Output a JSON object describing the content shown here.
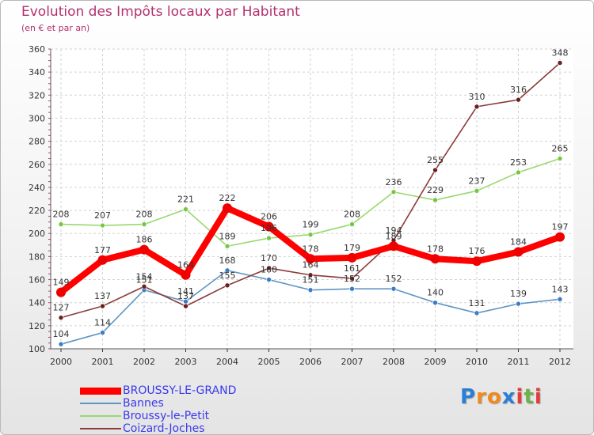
{
  "title": "Evolution des Impôts locaux par Habitant",
  "subtitle": "(en € et par an)",
  "logo": {
    "letters": [
      "P",
      "r",
      "o",
      "x",
      "i",
      "t",
      "i"
    ],
    "colors": [
      "#2a7fd4",
      "#f08a1c",
      "#f08a1c",
      "#2a7fd4",
      "#e53a3a",
      "#6bb34a",
      "#e53a3a"
    ]
  },
  "chart_data": {
    "type": "line",
    "categories": [
      "2000",
      "2001",
      "2002",
      "2003",
      "2004",
      "2005",
      "2006",
      "2007",
      "2008",
      "2009",
      "2010",
      "2011",
      "2012"
    ],
    "ylim": [
      100,
      360
    ],
    "yticks": [
      100,
      120,
      140,
      160,
      180,
      200,
      220,
      240,
      260,
      280,
      300,
      320,
      340,
      360
    ],
    "grid": true,
    "series": [
      {
        "name": "Bannes",
        "color": "#5f95c4",
        "marker": "#3b7cc4",
        "values": [
          104,
          114,
          151,
          141,
          168,
          160,
          151,
          152,
          152,
          140,
          131,
          139,
          143
        ]
      },
      {
        "name": "Broussy-le-Petit",
        "color": "#9ad870",
        "marker": "#74c840",
        "values": [
          208,
          207,
          208,
          221,
          189,
          196,
          199,
          208,
          236,
          229,
          237,
          253,
          265
        ]
      },
      {
        "name": "Coizard-Joches",
        "color": "#8a3b3b",
        "marker": "#6a1e1e",
        "values": [
          127,
          137,
          154,
          137,
          155,
          170,
          164,
          161,
          194,
          255,
          310,
          316,
          348
        ]
      },
      {
        "name": "BROUSSY-LE-GRAND",
        "color": "#ff0000",
        "marker": "#ee0000",
        "values": [
          149,
          177,
          186,
          164,
          222,
          206,
          178,
          179,
          189,
          178,
          176,
          184,
          197
        ]
      }
    ],
    "legend": [
      "BROUSSY-LE-GRAND",
      "Bannes",
      "Broussy-le-Petit",
      "Coizard-Joches"
    ]
  }
}
